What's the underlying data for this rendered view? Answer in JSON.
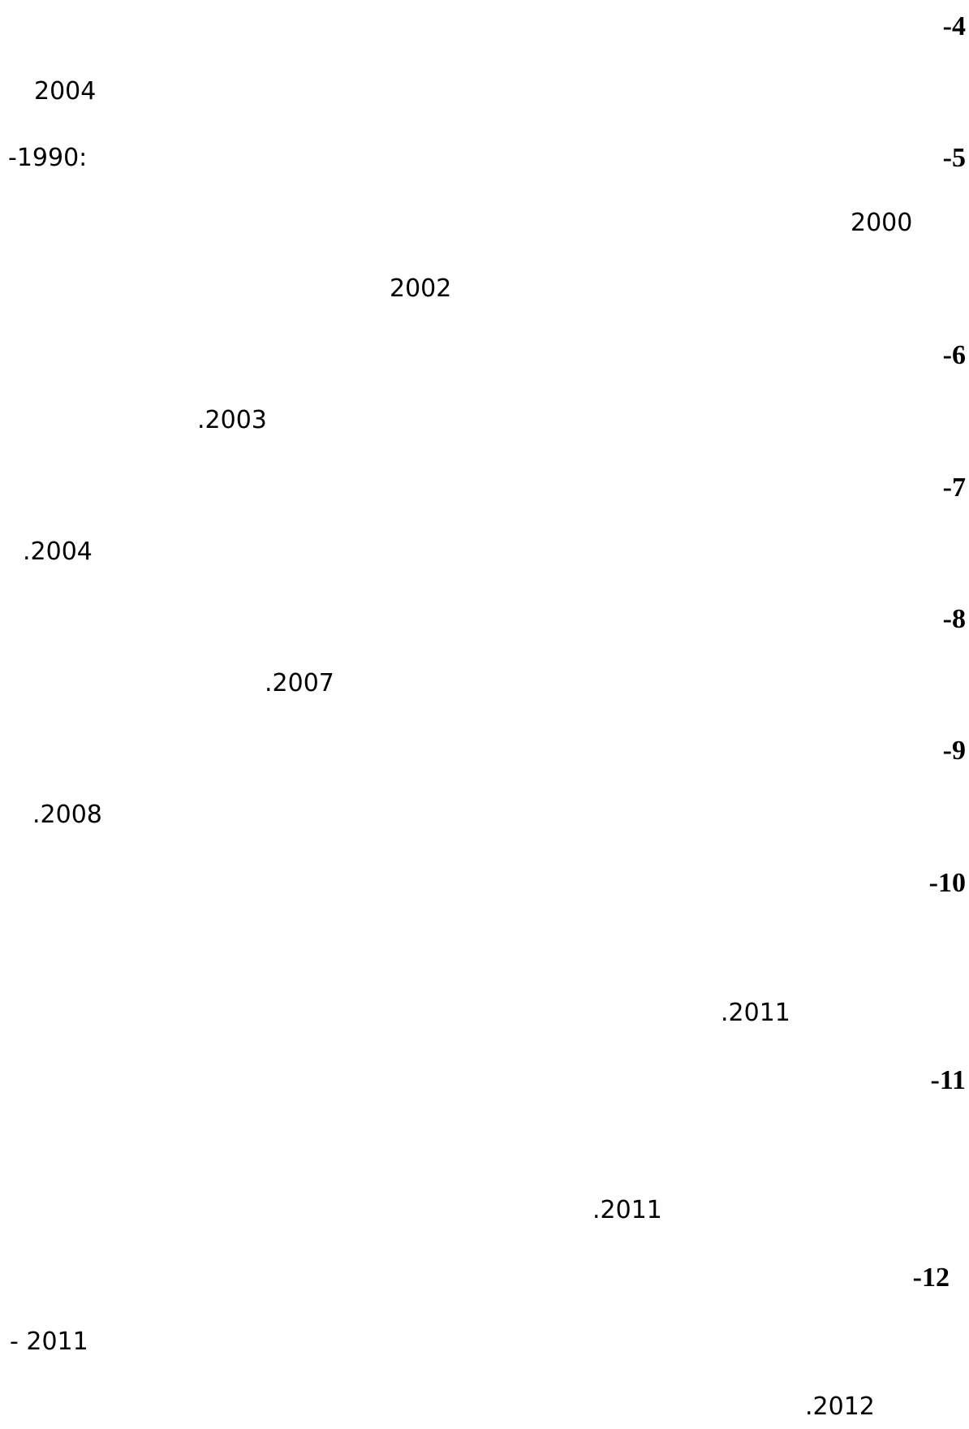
{
  "references": [
    {
      "number": "-4",
      "text": [
        "2004"
      ]
    },
    {
      "number": "-5",
      "text": [
        "-1990:",
        "2000",
        "2002"
      ]
    },
    {
      "number": "-6",
      "text": [
        ".2003"
      ]
    },
    {
      "number": "-7",
      "text": [
        ".2004"
      ]
    },
    {
      "number": "-8",
      "text": [
        ".2007"
      ]
    },
    {
      "number": "-9",
      "text": [
        ".2008"
      ]
    },
    {
      "number": "-10",
      "text": [
        ".2011"
      ]
    },
    {
      "number": "-11",
      "text": [
        ".2011"
      ]
    },
    {
      "number": "-12",
      "text": [
        "- 2011",
        ".2012"
      ]
    }
  ]
}
